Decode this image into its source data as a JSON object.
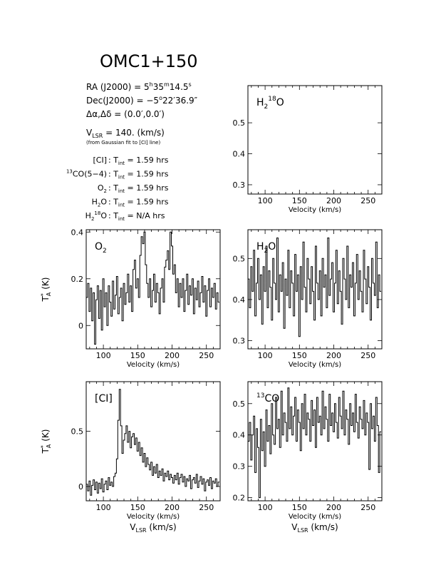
{
  "header": {
    "source": "OMC1+150",
    "ra": {
      "label": "RA (J2000) = ",
      "h": "5",
      "m": "35",
      "s": "14.5"
    },
    "dec": {
      "label": "Dec(J2000) = ",
      "deg": "−5",
      "rest": "22′36.9″"
    },
    "offset": {
      "lhs": "Δα,Δδ = ",
      "value": "(0.0′,0.0′)"
    },
    "vlsr": {
      "prefix": "V",
      "sub": "LSR",
      "value": " = 140. (km/s)"
    },
    "vlsr_note": "(from Gaussian fit to [CI] line)",
    "integrations": [
      {
        "name": "[CI]",
        "value": "1.59"
      },
      {
        "name": "13CO(5−4)",
        "value": "1.59"
      },
      {
        "name": "O2",
        "value": "1.59"
      },
      {
        "name": "H2O",
        "value": "1.59"
      },
      {
        "name": "H218O",
        "value": "N/A"
      }
    ],
    "tint_label": "T",
    "tint_sub": "int",
    "hrs": "hrs"
  },
  "axis_text": {
    "velocity": "Velocity (km/s)",
    "vlsr_label": "V",
    "vlsr_sub": "LSR",
    "vlsr_unit": " (km/s)",
    "ta_label": "T",
    "ta_sup": "*",
    "ta_sub": "A",
    "ta_unit": " (K)"
  },
  "chart_data": [
    {
      "id": "h218o",
      "type": "line",
      "title": "H218O",
      "xlim": [
        75,
        270
      ],
      "ylim": [
        0.27,
        0.62
      ],
      "xticks": [
        100,
        150,
        200,
        250
      ],
      "yticks": [
        0.3,
        0.4,
        0.5
      ],
      "ytick_labels": [
        "0.3",
        "0.4",
        "0.5"
      ],
      "xlabel": "Velocity (km/s)",
      "x": [],
      "values": []
    },
    {
      "id": "o2",
      "type": "line",
      "title": "O2",
      "xlim": [
        75,
        270
      ],
      "ylim": [
        -0.1,
        0.41
      ],
      "xticks": [
        100,
        150,
        200,
        250
      ],
      "yticks": [
        0,
        0.2,
        0.4
      ],
      "ytick_labels": [
        "0",
        "0.2",
        "0.4"
      ],
      "xlabel": "Velocity (km/s)",
      "ylabel": "T*A (K)",
      "x": [
        76,
        78,
        80,
        82,
        84,
        86,
        88,
        90,
        92,
        94,
        96,
        98,
        100,
        102,
        104,
        106,
        108,
        110,
        112,
        114,
        116,
        118,
        120,
        122,
        124,
        126,
        128,
        130,
        132,
        134,
        136,
        138,
        140,
        142,
        144,
        146,
        148,
        150,
        152,
        154,
        156,
        158,
        160,
        162,
        164,
        166,
        168,
        170,
        172,
        174,
        176,
        178,
        180,
        182,
        184,
        186,
        188,
        190,
        192,
        194,
        196,
        198,
        200,
        202,
        204,
        206,
        208,
        210,
        212,
        214,
        216,
        218,
        220,
        222,
        224,
        226,
        228,
        230,
        232,
        234,
        236,
        238,
        240,
        242,
        244,
        246,
        248,
        250,
        252,
        254,
        256,
        258,
        260,
        262,
        264,
        266,
        268
      ],
      "values": [
        0.12,
        0.18,
        0.06,
        0.16,
        0.02,
        0.14,
        -0.08,
        0.11,
        0.17,
        0.03,
        0.15,
        -0.02,
        0.2,
        0.08,
        0.14,
        0.0,
        0.17,
        0.1,
        0.04,
        0.19,
        0.07,
        0.13,
        0.21,
        0.05,
        0.12,
        0.16,
        0.02,
        0.18,
        0.09,
        0.14,
        0.22,
        0.1,
        0.17,
        0.06,
        0.24,
        0.28,
        0.16,
        0.2,
        0.12,
        0.3,
        0.38,
        0.35,
        0.4,
        0.26,
        0.18,
        0.12,
        0.2,
        0.08,
        0.15,
        0.22,
        0.1,
        0.18,
        0.14,
        0.05,
        0.16,
        0.2,
        0.1,
        0.25,
        0.28,
        0.32,
        0.24,
        0.4,
        0.34,
        0.22,
        0.26,
        0.14,
        0.2,
        0.08,
        0.18,
        0.12,
        0.2,
        0.06,
        0.15,
        0.22,
        0.09,
        0.17,
        0.13,
        0.2,
        0.05,
        0.16,
        0.11,
        0.19,
        0.08,
        0.14,
        0.21,
        0.1,
        0.17,
        0.04,
        0.15,
        0.2,
        0.08,
        0.16,
        0.12,
        0.18,
        0.07,
        0.14,
        0.1
      ]
    },
    {
      "id": "h2o",
      "type": "line",
      "title": "H2O",
      "xlim": [
        75,
        270
      ],
      "ylim": [
        0.28,
        0.57
      ],
      "xticks": [
        100,
        150,
        200,
        250
      ],
      "yticks": [
        0.3,
        0.4,
        0.5
      ],
      "ytick_labels": [
        "0.3",
        "0.4",
        "0.5"
      ],
      "xlabel": "Velocity (km/s)",
      "x": [
        76,
        78,
        80,
        82,
        84,
        86,
        88,
        90,
        92,
        94,
        96,
        98,
        100,
        102,
        104,
        106,
        108,
        110,
        112,
        114,
        116,
        118,
        120,
        122,
        124,
        126,
        128,
        130,
        132,
        134,
        136,
        138,
        140,
        142,
        144,
        146,
        148,
        150,
        152,
        154,
        156,
        158,
        160,
        162,
        164,
        166,
        168,
        170,
        172,
        174,
        176,
        178,
        180,
        182,
        184,
        186,
        188,
        190,
        192,
        194,
        196,
        198,
        200,
        202,
        204,
        206,
        208,
        210,
        212,
        214,
        216,
        218,
        220,
        222,
        224,
        226,
        228,
        230,
        232,
        234,
        236,
        238,
        240,
        242,
        244,
        246,
        248,
        250,
        252,
        254,
        256,
        258,
        260,
        262,
        264,
        266,
        268
      ],
      "values": [
        0.45,
        0.38,
        0.48,
        0.42,
        0.52,
        0.36,
        0.44,
        0.5,
        0.4,
        0.46,
        0.34,
        0.48,
        0.42,
        0.53,
        0.38,
        0.47,
        0.43,
        0.35,
        0.5,
        0.44,
        0.4,
        0.55,
        0.37,
        0.46,
        0.42,
        0.49,
        0.33,
        0.45,
        0.41,
        0.52,
        0.38,
        0.47,
        0.44,
        0.36,
        0.51,
        0.42,
        0.46,
        0.31,
        0.48,
        0.4,
        0.54,
        0.43,
        0.37,
        0.5,
        0.45,
        0.39,
        0.48,
        0.42,
        0.35,
        0.53,
        0.44,
        0.4,
        0.47,
        0.36,
        0.5,
        0.43,
        0.46,
        0.38,
        0.55,
        0.41,
        0.45,
        0.49,
        0.37,
        0.44,
        0.52,
        0.39,
        0.47,
        0.42,
        0.34,
        0.5,
        0.45,
        0.4,
        0.53,
        0.38,
        0.46,
        0.43,
        0.49,
        0.36,
        0.44,
        0.51,
        0.4,
        0.47,
        0.42,
        0.37,
        0.52,
        0.45,
        0.39,
        0.48,
        0.43,
        0.35,
        0.5,
        0.44,
        0.41,
        0.54,
        0.38,
        0.46,
        0.42
      ]
    },
    {
      "id": "ci",
      "type": "line",
      "title": "[CI]",
      "xlim": [
        75,
        270
      ],
      "ylim": [
        -0.13,
        0.95
      ],
      "xticks": [
        100,
        150,
        200,
        250
      ],
      "yticks": [
        0,
        0.5
      ],
      "ytick_labels": [
        "0",
        "0.5"
      ],
      "xlabel": "Velocity (km/s)",
      "ylabel": "T*A (K)",
      "x": [
        76,
        78,
        80,
        82,
        84,
        86,
        88,
        90,
        92,
        94,
        96,
        98,
        100,
        102,
        104,
        106,
        108,
        110,
        112,
        114,
        116,
        118,
        120,
        122,
        124,
        126,
        128,
        130,
        132,
        134,
        136,
        138,
        140,
        142,
        144,
        146,
        148,
        150,
        152,
        154,
        156,
        158,
        160,
        162,
        164,
        166,
        168,
        170,
        172,
        174,
        176,
        178,
        180,
        182,
        184,
        186,
        188,
        190,
        192,
        194,
        196,
        198,
        200,
        202,
        204,
        206,
        208,
        210,
        212,
        214,
        216,
        218,
        220,
        222,
        224,
        226,
        228,
        230,
        232,
        234,
        236,
        238,
        240,
        242,
        244,
        246,
        248,
        250,
        252,
        254,
        256,
        258,
        260,
        262,
        264,
        266,
        268
      ],
      "values": [
        0.02,
        -0.04,
        0.05,
        -0.08,
        0.01,
        0.06,
        -0.03,
        0.04,
        -0.06,
        0.03,
        -0.02,
        0.07,
        -0.05,
        0.02,
        0.05,
        -0.03,
        0.08,
        0.01,
        0.04,
        0.0,
        0.09,
        0.12,
        0.25,
        0.6,
        0.88,
        0.55,
        0.3,
        0.42,
        0.48,
        0.55,
        0.4,
        0.5,
        0.35,
        0.45,
        0.48,
        0.38,
        0.44,
        0.32,
        0.4,
        0.28,
        0.35,
        0.22,
        0.3,
        0.18,
        0.26,
        0.2,
        0.15,
        0.22,
        0.1,
        0.18,
        0.12,
        0.2,
        0.08,
        0.14,
        0.1,
        0.16,
        0.05,
        0.12,
        0.09,
        0.14,
        0.06,
        0.11,
        0.08,
        0.03,
        0.1,
        0.06,
        0.12,
        0.02,
        0.08,
        0.11,
        0.04,
        0.09,
        0.0,
        0.07,
        0.05,
        0.1,
        -0.02,
        0.06,
        0.08,
        0.03,
        0.11,
        -0.01,
        0.05,
        0.09,
        0.02,
        0.07,
        -0.04,
        0.04,
        0.06,
        0.01,
        0.08,
        -0.02,
        0.05,
        0.03,
        0.07,
        0.0,
        0.04
      ]
    },
    {
      "id": "13co",
      "type": "line",
      "title": "13CO",
      "xlim": [
        75,
        270
      ],
      "ylim": [
        0.19,
        0.57
      ],
      "xticks": [
        100,
        150,
        200,
        250
      ],
      "yticks": [
        0.2,
        0.3,
        0.4,
        0.5
      ],
      "ytick_labels": [
        "0.2",
        "0.3",
        "0.4",
        "0.5"
      ],
      "xlabel": "Velocity (km/s)",
      "x": [
        76,
        78,
        80,
        82,
        84,
        86,
        88,
        90,
        92,
        94,
        96,
        98,
        100,
        102,
        104,
        106,
        108,
        110,
        112,
        114,
        116,
        118,
        120,
        122,
        124,
        126,
        128,
        130,
        132,
        134,
        136,
        138,
        140,
        142,
        144,
        146,
        148,
        150,
        152,
        154,
        156,
        158,
        160,
        162,
        164,
        166,
        168,
        170,
        172,
        174,
        176,
        178,
        180,
        182,
        184,
        186,
        188,
        190,
        192,
        194,
        196,
        198,
        200,
        202,
        204,
        206,
        208,
        210,
        212,
        214,
        216,
        218,
        220,
        222,
        224,
        226,
        228,
        230,
        232,
        234,
        236,
        238,
        240,
        242,
        244,
        246,
        248,
        250,
        252,
        254,
        256,
        258,
        260,
        262,
        264,
        266,
        268
      ],
      "values": [
        0.38,
        0.44,
        0.32,
        0.4,
        0.46,
        0.28,
        0.42,
        0.36,
        0.2,
        0.45,
        0.35,
        0.41,
        0.3,
        0.48,
        0.38,
        0.43,
        0.34,
        0.5,
        0.4,
        0.37,
        0.52,
        0.42,
        0.45,
        0.36,
        0.54,
        0.4,
        0.47,
        0.44,
        0.38,
        0.55,
        0.42,
        0.49,
        0.4,
        0.46,
        0.52,
        0.38,
        0.48,
        0.44,
        0.35,
        0.5,
        0.42,
        0.53,
        0.4,
        0.47,
        0.45,
        0.38,
        0.51,
        0.43,
        0.48,
        0.36,
        0.52,
        0.44,
        0.46,
        0.4,
        0.54,
        0.42,
        0.49,
        0.45,
        0.38,
        0.53,
        0.43,
        0.47,
        0.41,
        0.5,
        0.44,
        0.39,
        0.52,
        0.46,
        0.42,
        0.54,
        0.4,
        0.48,
        0.45,
        0.37,
        0.5,
        0.43,
        0.47,
        0.41,
        0.53,
        0.44,
        0.39,
        0.49,
        0.45,
        0.42,
        0.51,
        0.4,
        0.47,
        0.44,
        0.29,
        0.5,
        0.42,
        0.46,
        0.38,
        0.52,
        0.43,
        0.28,
        0.41
      ]
    }
  ]
}
